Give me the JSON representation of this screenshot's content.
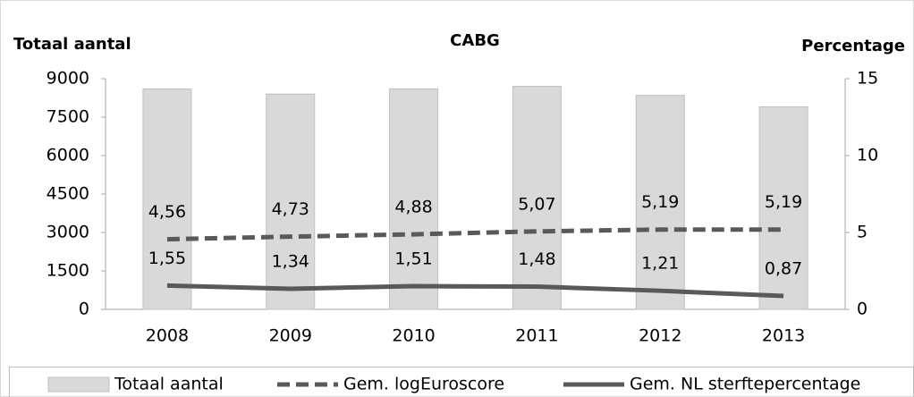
{
  "chart_data": {
    "type": "bar-line",
    "title": "CABG",
    "y_label": "Totaal aantal",
    "y2_label": "Percentage",
    "categories": [
      "2008",
      "2009",
      "2010",
      "2011",
      "2012",
      "2013"
    ],
    "ylim": [
      0,
      9000
    ],
    "yticks": [
      0,
      1500,
      3000,
      4500,
      6000,
      7500,
      9000
    ],
    "y2lim": [
      0,
      15
    ],
    "y2ticks": [
      0,
      5,
      10,
      15
    ],
    "grid": false,
    "legend": "bottom",
    "series": [
      {
        "name": "Totaal aantal",
        "type": "bar",
        "axis": "y",
        "color": "#d9d9d9",
        "values": [
          8600,
          8400,
          8600,
          8700,
          8350,
          7900
        ]
      },
      {
        "name": "Gem. logEuroscore",
        "type": "line",
        "line_style": "dashed",
        "axis": "y2",
        "color": "#595959",
        "values": [
          4.56,
          4.73,
          4.88,
          5.07,
          5.19,
          5.19
        ],
        "value_labels": [
          "4,56",
          "4,73",
          "4,88",
          "5,07",
          "5,19",
          "5,19"
        ]
      },
      {
        "name": "Gem. NL sterftepercentage",
        "type": "line",
        "line_style": "solid",
        "axis": "y2",
        "color": "#595959",
        "values": [
          1.55,
          1.34,
          1.51,
          1.48,
          1.21,
          0.87
        ],
        "value_labels": [
          "1,55",
          "1,34",
          "1,51",
          "1,48",
          "1,21",
          "0,87"
        ]
      }
    ]
  }
}
